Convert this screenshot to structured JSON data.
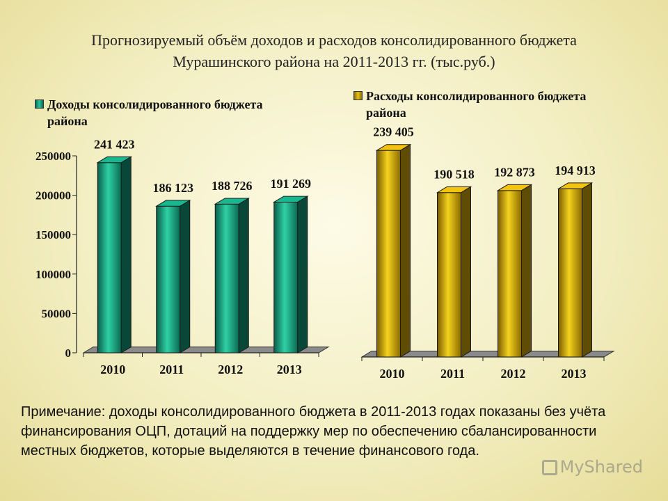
{
  "title": {
    "line1": "Прогнозируемый объём доходов и расходов консолидированного бюджета",
    "line2": "Мурашинского района на 2011-2013 гг. (тыс.руб.)"
  },
  "chart_data": [
    {
      "type": "bar",
      "categories": [
        "2010",
        "2011",
        "2012",
        "2013"
      ],
      "series": [
        {
          "name": "Доходы консолидированного бюджета района",
          "values": [
            241423,
            186123,
            188726,
            191269
          ]
        }
      ],
      "data_labels": [
        "241 423",
        "186 123",
        "188 726",
        "191 269"
      ],
      "ylim": [
        0,
        250000
      ],
      "yticks": [
        "250000",
        "200000",
        "150000",
        "100000",
        "50000",
        "0"
      ],
      "color": "#14a07c",
      "legend_line1": "Доходы консолидированного бюджета",
      "legend_line2": "района"
    },
    {
      "type": "bar",
      "categories": [
        "2010",
        "2011",
        "2012",
        "2013"
      ],
      "series": [
        {
          "name": "Расходы консолидированного бюджета района",
          "values": [
            239405,
            190518,
            192873,
            194913
          ]
        }
      ],
      "data_labels": [
        "239 405",
        "190 518",
        "192 873",
        "194 913"
      ],
      "ylim": [
        0,
        250000
      ],
      "yticks": [],
      "color": "#d4aa0c",
      "legend_line1": "Расходы консолидированного бюджета",
      "legend_line2": "района"
    }
  ],
  "note": "Примечание: доходы консолидированного бюджета в 2011-2013 годах показаны без учёта финансирования ОЦП, дотаций на поддержку мер по обеспечению сбалансированности местных бюджетов, которые выделяются в течение финансового года.",
  "watermark": "MyShared"
}
